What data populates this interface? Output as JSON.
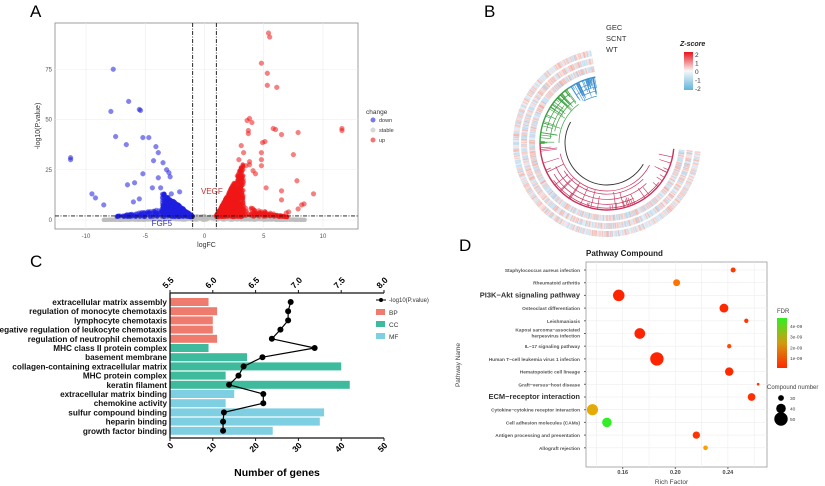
{
  "panel_labels": {
    "a": "A",
    "b": "B",
    "c": "C",
    "d": "D"
  },
  "chart_data": [
    {
      "type": "scatter",
      "panel": "A",
      "xlabel": "logFC",
      "ylabel": "-log10(P.value)",
      "xlim": [
        -12.5,
        12.5
      ],
      "ylim": [
        -5,
        97
      ],
      "xticks": [
        -10,
        -5,
        0,
        5,
        10
      ],
      "yticks": [
        0,
        25,
        50,
        75
      ],
      "grid": true,
      "thresholds": {
        "logFC": [
          -1,
          1
        ],
        "neglog10p": 2
      },
      "legend": {
        "title": "change",
        "placement": "right",
        "entries": [
          "down",
          "stable",
          "up"
        ]
      },
      "colors": {
        "down": "#1f1fe0",
        "stable": "#bdbdbd",
        "up": "#f01818"
      },
      "annotations": [
        {
          "text": "VEGF",
          "x": -0.3,
          "y": 13,
          "color": "#c03030"
        },
        {
          "text": "FGF5",
          "x": -3.6,
          "y": -3,
          "color": "#3030c0"
        }
      ],
      "series": [
        {
          "name": "down",
          "points": [
            [
              -11.3,
              31
            ],
            [
              -11.3,
              30
            ],
            [
              -9.5,
              13
            ],
            [
              -9.2,
              11
            ],
            [
              -8.5,
              7.5
            ],
            [
              -7.7,
              75
            ],
            [
              -7.5,
              41.5
            ],
            [
              -7.9,
              54
            ],
            [
              -6.4,
              59
            ],
            [
              -6.6,
              37.5
            ],
            [
              -6.5,
              17.5
            ],
            [
              -5.9,
              18.5
            ],
            [
              -5.5,
              55
            ],
            [
              -5.4,
              54.5
            ],
            [
              -5.2,
              41
            ],
            [
              -4.7,
              41
            ],
            [
              -5.2,
              23
            ],
            [
              -4.1,
              36.5
            ],
            [
              -3.9,
              33.5
            ],
            [
              -4.3,
              29.5
            ],
            [
              -3.5,
              28.5
            ],
            [
              -3.2,
              25
            ],
            [
              -3.0,
              23.5
            ],
            [
              -2.9,
              21.5
            ],
            [
              -3.9,
              21
            ],
            [
              -4.4,
              16
            ],
            [
              -3.7,
              16
            ],
            [
              -6.0,
              9
            ],
            [
              -5.5,
              10.5
            ],
            [
              -2.8,
              13
            ],
            [
              -2.1,
              14
            ]
          ]
        },
        {
          "name": "up",
          "points": [
            [
              5.4,
              93
            ],
            [
              5.5,
              91
            ],
            [
              4.8,
              78
            ],
            [
              5.3,
              73
            ],
            [
              5.3,
              67
            ],
            [
              6.1,
              66
            ],
            [
              3.8,
              50.5
            ],
            [
              3.6,
              49.5
            ],
            [
              4.0,
              48.5
            ],
            [
              3.7,
              44.5
            ],
            [
              3.7,
              43
            ],
            [
              5.8,
              45.5
            ],
            [
              6.0,
              45
            ],
            [
              6.5,
              42.5
            ],
            [
              7.9,
              43.5
            ],
            [
              11.6,
              45.5
            ],
            [
              11.6,
              44.5
            ],
            [
              5.1,
              39
            ],
            [
              4.9,
              38.5
            ],
            [
              3.1,
              37
            ],
            [
              3.3,
              33.5
            ],
            [
              4.8,
              33.5
            ],
            [
              7.5,
              32.5
            ],
            [
              2.9,
              30
            ],
            [
              3.8,
              29
            ],
            [
              3.8,
              27.5
            ],
            [
              4.8,
              27
            ],
            [
              4.8,
              30
            ],
            [
              3.5,
              27
            ],
            [
              4.1,
              24.5
            ],
            [
              4.3,
              23
            ],
            [
              7.8,
              19.5
            ],
            [
              5.2,
              16
            ],
            [
              6.5,
              14.5
            ],
            [
              6.5,
              10
            ],
            [
              9.2,
              13
            ],
            [
              8.4,
              8
            ],
            [
              8.2,
              7.5
            ],
            [
              7.9,
              5.5
            ],
            [
              7.1,
              4
            ],
            [
              6.9,
              3.5
            ]
          ]
        }
      ]
    },
    {
      "type": "heatmap",
      "panel": "B",
      "ring_labels": [
        "GEC",
        "SCNT",
        "WT"
      ],
      "colorbar": {
        "title": "Z-score",
        "ticks": [
          "2",
          "1",
          "0",
          "-1",
          "-2"
        ],
        "colors": [
          "#e8141c",
          "#f8f8f8",
          "#5fb4dc"
        ]
      },
      "cluster_colors": [
        "#3a8fd0",
        "#3aa040",
        "#c8305a"
      ]
    },
    {
      "type": "bar",
      "panel": "C",
      "xlabel": "Number of genes",
      "xlim": [
        0,
        50
      ],
      "xticks": [
        0,
        10,
        20,
        30,
        40,
        50
      ],
      "x2lim": [
        5.5,
        8.0
      ],
      "x2ticks": [
        "5.5",
        "6.0",
        "6.5",
        "7.0",
        "7.5",
        "8.0"
      ],
      "legend": {
        "placement": "right",
        "entries": [
          "-log10(P.value)",
          "BP",
          "CC",
          "MF"
        ]
      },
      "colors": {
        "BP": "#ee7b6d",
        "CC": "#3dbb9c",
        "MF": "#7ecfe2",
        "line": "#000000"
      },
      "categories": [
        "extracellular matrix assembly",
        "regulation of monocyte chemotaxis",
        "lymphocyte chemotaxis",
        "negative regulation of leukocyte chemotaxis",
        "regulation of neutrophil chemotaxis",
        "MHC class II protein complex",
        "basement membrane",
        "collagen-containing extracellular matrix",
        "MHC protein complex",
        "keratin filament",
        "extracellular matrix binding",
        "chemokine activity",
        "sulfur compound binding",
        "heparin binding",
        "growth factor binding"
      ],
      "groups": [
        "BP",
        "BP",
        "BP",
        "BP",
        "BP",
        "CC",
        "CC",
        "CC",
        "CC",
        "CC",
        "MF",
        "MF",
        "MF",
        "MF",
        "MF"
      ],
      "values": [
        9,
        11,
        10,
        10,
        11,
        9,
        18,
        40,
        13,
        42,
        15,
        13,
        36,
        35,
        24
      ],
      "neglog10p": [
        6.91,
        6.88,
        6.88,
        6.79,
        6.69,
        7.19,
        6.58,
        6.36,
        6.3,
        6.19,
        6.59,
        6.59,
        6.13,
        6.12,
        6.12
      ]
    },
    {
      "type": "scatter",
      "panel": "D",
      "title": "Pathway   Compound",
      "xlabel": "Rich Factor",
      "ylabel": "Pathway Name",
      "xlim": [
        0.13,
        0.27
      ],
      "xticks": [
        "0.16",
        "0.20",
        "0.24"
      ],
      "grid": true,
      "fdr_legend": {
        "title": "FDR",
        "ticks": [
          "4e-09",
          "3e-09",
          "2e-09",
          "1e-09"
        ],
        "colors": [
          "#33ee22",
          "#ff2a00"
        ]
      },
      "size_legend": {
        "title": "Compound number",
        "ticks": [
          "30",
          "40",
          "50"
        ]
      },
      "highlighted": [
        "PI3K−Akt signaling pathway",
        "ECM−receptor interaction"
      ],
      "categories": [
        "Staphylococcus aureus infection",
        "Rheumatoid arthritis",
        "PI3K−Akt signaling pathway",
        "Osteoclast differentiation",
        "Leishmaniasis",
        "Kaposi sarcoma−associated\nherpesvirus infection",
        "IL−17 signaling pathway",
        "Human T−cell leukemia virus 1 infection",
        "Hematopoietic cell lineage",
        "Graft−versus−host disease",
        "ECM−receptor interaction",
        "Cytokine−cytokine receptor interaction",
        "Cell adhesion molecules (CAMs)",
        "Antigen processing and presentation",
        "Allograft rejection"
      ],
      "rich_factor": [
        0.244,
        0.201,
        0.157,
        0.237,
        0.254,
        0.173,
        0.241,
        0.186,
        0.241,
        0.263,
        0.258,
        0.137,
        0.148,
        0.216,
        0.223
      ],
      "compound_number": [
        28,
        33,
        45,
        38,
        26,
        43,
        26,
        50,
        37,
        22,
        35,
        44,
        40,
        34,
        27
      ],
      "fdr": [
        5e-10,
        1.5e-09,
        1e-10,
        2e-10,
        4e-10,
        1e-10,
        8e-10,
        1e-10,
        2e-10,
        5e-10,
        3e-10,
        2.6e-09,
        4.6e-09,
        4e-10,
        2.4e-09
      ]
    }
  ]
}
